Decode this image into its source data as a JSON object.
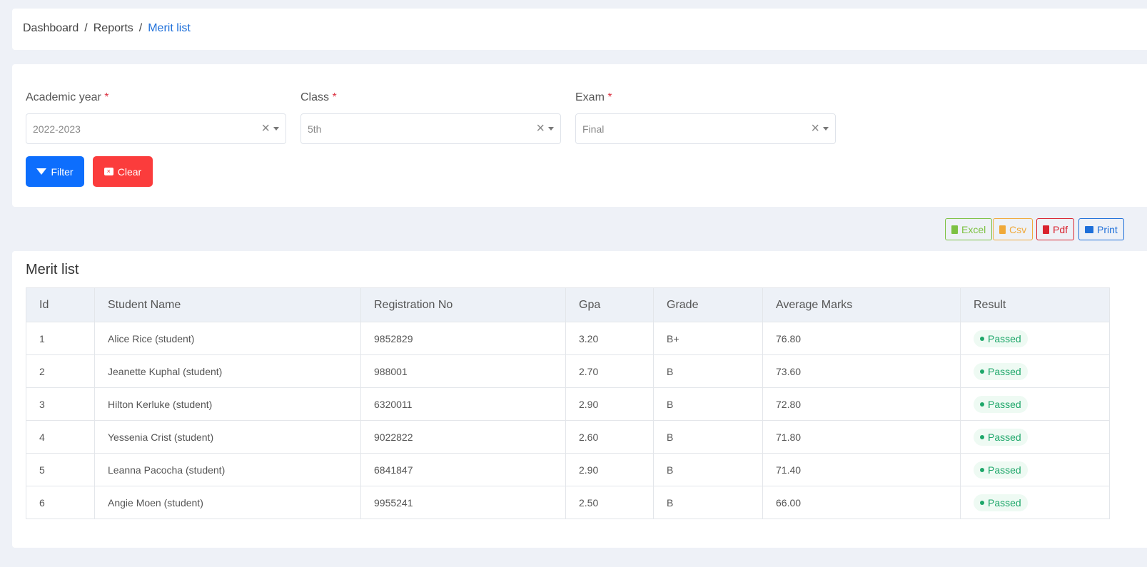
{
  "breadcrumb": [
    "Dashboard",
    "Reports",
    "Merit list"
  ],
  "filters": [
    {
      "label": "Academic year",
      "value": "2022-2023"
    },
    {
      "label": "Class",
      "value": "5th"
    },
    {
      "label": "Exam",
      "value": "Final"
    }
  ],
  "buttons": {
    "filter": "Filter",
    "clear": "Clear"
  },
  "export": {
    "excel": "Excel",
    "csv": "Csv",
    "pdf": "Pdf",
    "print": "Print"
  },
  "merit": {
    "title": "Merit list",
    "columns": [
      "Id",
      "Student Name",
      "Registration No",
      "Gpa",
      "Grade",
      "Average Marks",
      "Result"
    ],
    "rows": [
      [
        "1",
        "Alice Rice (student)",
        "9852829",
        "3.20",
        "B+",
        "76.80",
        "Passed"
      ],
      [
        "2",
        "Jeanette Kuphal (student)",
        "988001",
        "2.70",
        "B",
        "73.60",
        "Passed"
      ],
      [
        "3",
        "Hilton Kerluke (student)",
        "6320011",
        "2.90",
        "B",
        "72.80",
        "Passed"
      ],
      [
        "4",
        "Yessenia Crist (student)",
        "9022822",
        "2.60",
        "B",
        "71.80",
        "Passed"
      ],
      [
        "5",
        "Leanna Pacocha (student)",
        "6841847",
        "2.90",
        "B",
        "71.40",
        "Passed"
      ],
      [
        "6",
        "Angie Moen (student)",
        "9955241",
        "2.50",
        "B",
        "66.00",
        "Passed"
      ]
    ]
  }
}
